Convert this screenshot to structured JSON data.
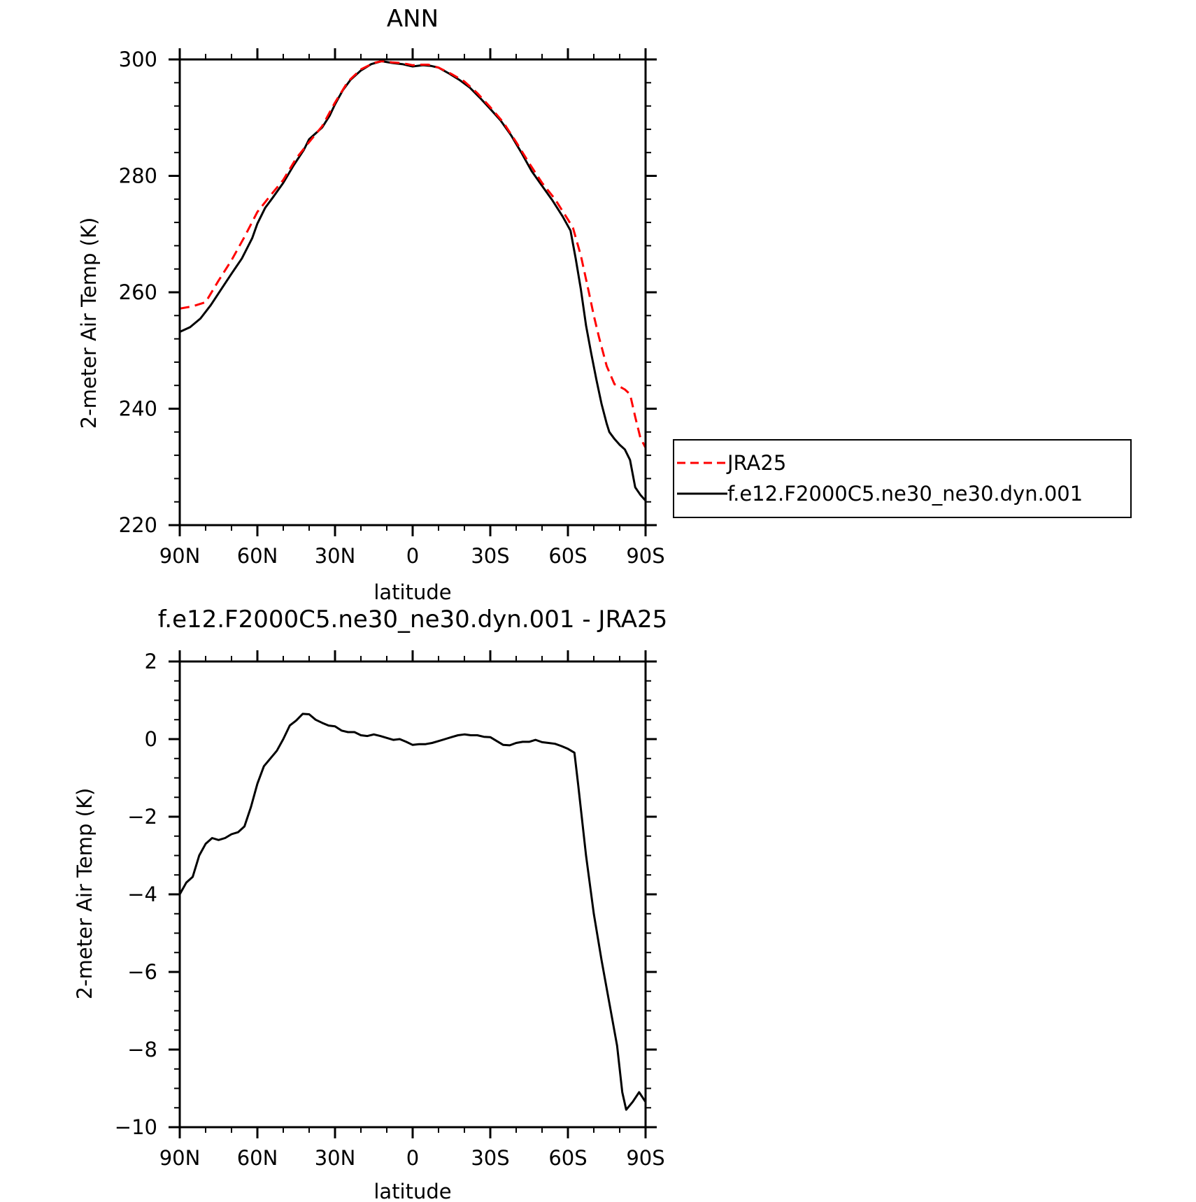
{
  "chart_data": [
    {
      "type": "line",
      "title": "ANN",
      "xlabel": "latitude",
      "ylabel": "2-meter Air Temp (K)",
      "xlim": [
        90,
        -90
      ],
      "ylim": [
        220,
        300
      ],
      "x_ticks": [
        90,
        60,
        30,
        0,
        -30,
        -60,
        -90
      ],
      "x_tick_labels": [
        "90N",
        "60N",
        "30N",
        "0",
        "30S",
        "60S",
        "90S"
      ],
      "y_ticks": [
        220,
        240,
        260,
        280,
        300
      ],
      "y_tick_labels": [
        "220",
        "240",
        "260",
        "280",
        "300"
      ],
      "legend_position": "right",
      "series": [
        {
          "name": "JRA25",
          "color": "#ff0000",
          "dash": "dashed",
          "points": [
            [
              90,
              257.2
            ],
            [
              85,
              257.6
            ],
            [
              80,
              258.3
            ],
            [
              75,
              262
            ],
            [
              70,
              265.5
            ],
            [
              65,
              269.5
            ],
            [
              60,
              273.8
            ],
            [
              55,
              276.6
            ],
            [
              50,
              279.3
            ],
            [
              45,
              283
            ],
            [
              40,
              285.8
            ],
            [
              35,
              288.5
            ],
            [
              30,
              292.6
            ],
            [
              25,
              296.2
            ],
            [
              20,
              298.3
            ],
            [
              15,
              299.4
            ],
            [
              12,
              299.7
            ],
            [
              8,
              299.5
            ],
            [
              5,
              299.4
            ],
            [
              2,
              299.2
            ],
            [
              0,
              299.0
            ],
            [
              -3,
              299.1
            ],
            [
              -6,
              299.1
            ],
            [
              -10,
              298.6
            ],
            [
              -15,
              297.5
            ],
            [
              -20,
              296.2
            ],
            [
              -25,
              294.2
            ],
            [
              -30,
              291.8
            ],
            [
              -35,
              289.2
            ],
            [
              -40,
              285.8
            ],
            [
              -45,
              282.2
            ],
            [
              -50,
              278.8
            ],
            [
              -55,
              276.0
            ],
            [
              -60,
              272.5
            ],
            [
              -62,
              271.0
            ],
            [
              -65,
              266.3
            ],
            [
              -68,
              260.2
            ],
            [
              -70,
              256
            ],
            [
              -72,
              252.3
            ],
            [
              -75,
              247.3
            ],
            [
              -78,
              244.2
            ],
            [
              -80,
              243.8
            ],
            [
              -82,
              243.3
            ],
            [
              -84,
              242.5
            ],
            [
              -86,
              238.6
            ],
            [
              -88,
              235
            ],
            [
              -90,
              233.3
            ]
          ]
        },
        {
          "name": "f.e12.F2000C5.ne30_ne30.dyn.001",
          "color": "#000000",
          "dash": "solid",
          "points": [
            [
              90,
              253.2
            ],
            [
              86,
              254
            ],
            [
              82,
              255.5
            ],
            [
              78,
              257.8
            ],
            [
              74,
              260.5
            ],
            [
              70,
              263.2
            ],
            [
              66,
              265.8
            ],
            [
              62,
              269.3
            ],
            [
              60,
              271.8
            ],
            [
              57,
              274.5
            ],
            [
              54,
              276.3
            ],
            [
              50,
              278.8
            ],
            [
              46,
              281.8
            ],
            [
              42,
              284.5
            ],
            [
              40,
              286.3
            ],
            [
              37,
              287.5
            ],
            [
              35,
              288.3
            ],
            [
              32,
              290.4
            ],
            [
              30,
              292.3
            ],
            [
              27,
              294.7
            ],
            [
              24,
              296.5
            ],
            [
              20,
              298.1
            ],
            [
              16,
              299.2
            ],
            [
              12,
              299.7
            ],
            [
              8,
              299.4
            ],
            [
              4,
              299.2
            ],
            [
              0,
              298.8
            ],
            [
              -4,
              299.0
            ],
            [
              -7,
              298.9
            ],
            [
              -10,
              298.6
            ],
            [
              -14,
              297.6
            ],
            [
              -18,
              296.5
            ],
            [
              -22,
              295.2
            ],
            [
              -26,
              293.4
            ],
            [
              -30,
              291.5
            ],
            [
              -34,
              289.5
            ],
            [
              -38,
              287
            ],
            [
              -42,
              284.0
            ],
            [
              -46,
              280.8
            ],
            [
              -50,
              278.3
            ],
            [
              -54,
              275.8
            ],
            [
              -58,
              273.0
            ],
            [
              -61,
              270.6
            ],
            [
              -63,
              265.8
            ],
            [
              -65,
              260.5
            ],
            [
              -67,
              254.3
            ],
            [
              -69,
              249.5
            ],
            [
              -71,
              245.0
            ],
            [
              -73,
              240.8
            ],
            [
              -75,
              237.4
            ],
            [
              -76,
              236.0
            ],
            [
              -78,
              234.8
            ],
            [
              -80,
              233.8
            ],
            [
              -82,
              233.0
            ],
            [
              -84,
              231.2
            ],
            [
              -86,
              226.5
            ],
            [
              -88,
              225.2
            ],
            [
              -90,
              224.2
            ]
          ]
        }
      ]
    },
    {
      "type": "line",
      "title": "f.e12.F2000C5.ne30_ne30.dyn.001 - JRA25",
      "xlabel": "latitude",
      "ylabel": "2-meter Air Temp (K)",
      "xlim": [
        90,
        -90
      ],
      "ylim": [
        -10,
        2
      ],
      "x_ticks": [
        90,
        60,
        30,
        0,
        -30,
        -60,
        -90
      ],
      "x_tick_labels": [
        "90N",
        "60N",
        "30N",
        "0",
        "30S",
        "60S",
        "90S"
      ],
      "y_ticks": [
        -10,
        -8,
        -6,
        -4,
        -2,
        0,
        2
      ],
      "y_tick_labels": [
        "-10",
        "-8",
        "-6",
        "-4",
        "-2",
        "0",
        "2"
      ],
      "series": [
        {
          "color": "#000000",
          "dash": "solid",
          "points": [
            [
              90,
              -4.0
            ],
            [
              87.5,
              -3.7
            ],
            [
              85,
              -3.55
            ],
            [
              82.5,
              -3.0
            ],
            [
              80,
              -2.7
            ],
            [
              77.5,
              -2.55
            ],
            [
              75,
              -2.6
            ],
            [
              72.5,
              -2.55
            ],
            [
              70,
              -2.45
            ],
            [
              67.5,
              -2.4
            ],
            [
              65,
              -2.25
            ],
            [
              62.5,
              -1.75
            ],
            [
              60,
              -1.15
            ],
            [
              57.5,
              -0.7
            ],
            [
              55,
              -0.5
            ],
            [
              52.5,
              -0.3
            ],
            [
              50,
              0.0
            ],
            [
              47.5,
              0.35
            ],
            [
              45,
              0.48
            ],
            [
              42.5,
              0.65
            ],
            [
              40,
              0.64
            ],
            [
              37.5,
              0.5
            ],
            [
              35,
              0.42
            ],
            [
              32.5,
              0.35
            ],
            [
              30,
              0.33
            ],
            [
              27.5,
              0.22
            ],
            [
              25,
              0.18
            ],
            [
              22.5,
              0.18
            ],
            [
              20,
              0.1
            ],
            [
              17.5,
              0.08
            ],
            [
              15,
              0.12
            ],
            [
              12.5,
              0.08
            ],
            [
              10,
              0.03
            ],
            [
              7.5,
              -0.02
            ],
            [
              5,
              0.0
            ],
            [
              2.5,
              -0.07
            ],
            [
              0,
              -0.15
            ],
            [
              -2.5,
              -0.13
            ],
            [
              -5,
              -0.13
            ],
            [
              -7.5,
              -0.1
            ],
            [
              -10,
              -0.05
            ],
            [
              -12.5,
              0.0
            ],
            [
              -15,
              0.05
            ],
            [
              -17.5,
              0.1
            ],
            [
              -20,
              0.12
            ],
            [
              -22.5,
              0.1
            ],
            [
              -25,
              0.1
            ],
            [
              -27.5,
              0.06
            ],
            [
              -30,
              0.05
            ],
            [
              -32.5,
              -0.05
            ],
            [
              -35,
              -0.15
            ],
            [
              -37.5,
              -0.16
            ],
            [
              -40,
              -0.1
            ],
            [
              -42.5,
              -0.07
            ],
            [
              -45,
              -0.07
            ],
            [
              -47.5,
              -0.02
            ],
            [
              -50,
              -0.08
            ],
            [
              -52.5,
              -0.1
            ],
            [
              -55,
              -0.12
            ],
            [
              -57.5,
              -0.18
            ],
            [
              -60,
              -0.25
            ],
            [
              -62.5,
              -0.35
            ],
            [
              -64,
              -1.2
            ],
            [
              -67,
              -3.0
            ],
            [
              -70,
              -4.5
            ],
            [
              -73,
              -5.7
            ],
            [
              -76,
              -6.8
            ],
            [
              -79,
              -7.9
            ],
            [
              -81,
              -9.1
            ],
            [
              -82.5,
              -9.55
            ],
            [
              -85,
              -9.35
            ],
            [
              -87.5,
              -9.1
            ],
            [
              -90,
              -9.35
            ]
          ]
        }
      ]
    }
  ]
}
